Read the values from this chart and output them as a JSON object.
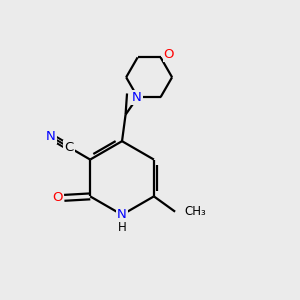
{
  "background_color": "#ebebeb",
  "bond_color": "#000000",
  "N_color": "#0000ff",
  "O_color": "#ff0000",
  "line_width": 1.6,
  "figsize": [
    3.0,
    3.0
  ],
  "dpi": 100,
  "xlim": [
    0,
    10
  ],
  "ylim": [
    0,
    10
  ]
}
